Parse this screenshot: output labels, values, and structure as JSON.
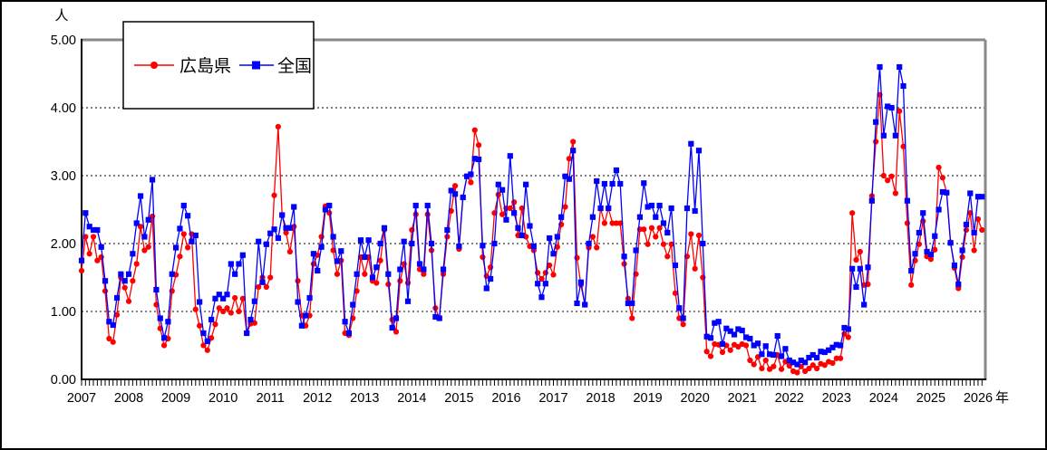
{
  "chart_data": {
    "type": "line",
    "title": "",
    "y_unit_label": "人",
    "x_unit_label": "年",
    "ylim": [
      0,
      5
    ],
    "y_ticks": [
      "0.00",
      "1.00",
      "2.00",
      "3.00",
      "4.00",
      "5.00"
    ],
    "x_years": [
      "2007",
      "2008",
      "2009",
      "2010",
      "2011",
      "2012",
      "2013",
      "2014",
      "2015",
      "2016",
      "2017",
      "2018",
      "2019",
      "2020",
      "2021",
      "2022",
      "2023",
      "2024",
      "2025",
      "2026"
    ],
    "x_start_month": "2007-01",
    "x_interval": "monthly",
    "grid": "dashed horizontal lines at 1.00-4.00",
    "legend_position": "top-left box",
    "series": [
      {
        "name": "広島県",
        "color": "#ff0000",
        "marker": "circle",
        "values": [
          1.6,
          2.1,
          1.85,
          2.1,
          1.75,
          1.8,
          1.3,
          0.6,
          0.55,
          0.95,
          1.5,
          1.35,
          1.15,
          1.45,
          1.7,
          2.25,
          1.9,
          1.95,
          2.4,
          1.1,
          0.75,
          0.5,
          0.6,
          1.3,
          1.54,
          1.81,
          2.14,
          1.94,
          2.14,
          1.03,
          0.79,
          0.5,
          0.43,
          0.61,
          0.81,
          1.05,
          1.0,
          1.05,
          0.98,
          1.2,
          1.0,
          1.19,
          0.68,
          0.82,
          0.83,
          1.36,
          1.5,
          1.36,
          1.5,
          2.71,
          3.72,
          2.42,
          2.16,
          1.88,
          2.25,
          1.45,
          0.94,
          0.79,
          0.94,
          1.7,
          1.83,
          2.1,
          2.55,
          2.45,
          1.9,
          1.55,
          1.75,
          0.68,
          0.65,
          0.9,
          1.3,
          1.8,
          1.55,
          1.8,
          1.45,
          1.42,
          1.75,
          2.2,
          1.4,
          0.88,
          0.7,
          1.45,
          1.7,
          1.42,
          2.2,
          2.43,
          1.62,
          1.55,
          2.43,
          1.9,
          1.05,
          0.9,
          1.55,
          2.1,
          2.48,
          2.85,
          1.92,
          2.68,
          2.99,
          2.9,
          3.67,
          3.45,
          1.8,
          1.52,
          1.65,
          2.45,
          2.72,
          2.43,
          2.52,
          2.52,
          2.61,
          2.12,
          2.52,
          2.1,
          1.96,
          1.9,
          1.57,
          1.48,
          1.57,
          1.68,
          1.54,
          1.95,
          2.28,
          2.54,
          3.25,
          3.5,
          1.79,
          1.39,
          1.1,
          1.94,
          2.1,
          1.94,
          2.52,
          2.3,
          2.52,
          2.3,
          2.3,
          2.3,
          1.7,
          1.19,
          0.9,
          1.55,
          2.21,
          2.21,
          1.99,
          2.23,
          2.1,
          2.23,
          1.99,
          1.81,
          1.99,
          1.27,
          0.9,
          0.81,
          1.81,
          2.14,
          1.63,
          2.12,
          1.5,
          0.41,
          0.34,
          0.52,
          0.51,
          0.4,
          0.5,
          0.43,
          0.51,
          0.48,
          0.52,
          0.5,
          0.28,
          0.22,
          0.33,
          0.16,
          0.28,
          0.15,
          0.19,
          0.36,
          0.15,
          0.26,
          0.2,
          0.12,
          0.1,
          0.19,
          0.12,
          0.16,
          0.21,
          0.16,
          0.23,
          0.21,
          0.26,
          0.24,
          0.31,
          0.31,
          0.67,
          0.62,
          2.45,
          1.76,
          1.88,
          1.39,
          1.4,
          2.7,
          3.5,
          4.19,
          3.0,
          2.93,
          2.99,
          2.74,
          3.95,
          3.43,
          2.3,
          1.39,
          1.75,
          1.99,
          2.33,
          1.81,
          1.77,
          1.91,
          3.12,
          2.97,
          2.75,
          2.02,
          1.64,
          1.34,
          1.8,
          2.2,
          2.45,
          1.9,
          2.36,
          2.2
        ]
      },
      {
        "name": "全国",
        "color": "#0000ff",
        "marker": "square",
        "values": [
          1.75,
          2.45,
          2.25,
          2.2,
          2.2,
          1.95,
          1.45,
          0.85,
          0.8,
          1.2,
          1.55,
          1.45,
          1.55,
          1.85,
          2.3,
          2.7,
          2.1,
          2.35,
          2.94,
          1.32,
          0.9,
          0.61,
          0.85,
          1.55,
          1.94,
          2.22,
          2.56,
          2.41,
          2.03,
          2.12,
          1.14,
          0.68,
          0.56,
          0.88,
          1.19,
          1.25,
          1.19,
          1.25,
          1.7,
          1.55,
          1.7,
          1.83,
          0.68,
          0.88,
          1.15,
          2.03,
          1.43,
          1.99,
          2.15,
          2.21,
          2.08,
          2.42,
          2.23,
          2.23,
          2.54,
          1.14,
          0.79,
          0.94,
          1.2,
          1.85,
          1.6,
          1.95,
          2.5,
          2.56,
          2.1,
          1.74,
          1.89,
          0.85,
          0.68,
          1.1,
          1.55,
          2.05,
          1.8,
          2.05,
          1.5,
          1.65,
          2.0,
          2.23,
          1.55,
          0.76,
          0.9,
          1.62,
          2.03,
          1.15,
          2.0,
          2.56,
          1.7,
          1.62,
          2.56,
          2.0,
          0.92,
          0.9,
          1.62,
          2.2,
          2.78,
          2.73,
          1.96,
          2.68,
          2.99,
          3.02,
          3.25,
          3.24,
          1.97,
          1.34,
          1.48,
          2.0,
          2.87,
          2.79,
          2.35,
          3.29,
          2.45,
          2.23,
          2.12,
          2.87,
          2.26,
          1.96,
          1.41,
          1.21,
          1.41,
          2.08,
          1.85,
          2.1,
          2.39,
          2.99,
          2.95,
          3.37,
          1.12,
          1.43,
          1.1,
          2.0,
          2.39,
          2.92,
          2.52,
          2.88,
          2.52,
          2.88,
          3.08,
          2.88,
          1.81,
          1.12,
          1.12,
          1.9,
          2.39,
          2.89,
          2.54,
          2.56,
          2.39,
          2.56,
          2.3,
          2.16,
          2.52,
          1.68,
          1.05,
          0.9,
          2.52,
          3.47,
          2.48,
          3.37,
          2.0,
          0.63,
          0.61,
          0.83,
          0.85,
          0.52,
          0.75,
          0.71,
          0.66,
          0.74,
          0.72,
          0.62,
          0.6,
          0.5,
          0.53,
          0.37,
          0.49,
          0.37,
          0.36,
          0.64,
          0.34,
          0.45,
          0.28,
          0.25,
          0.22,
          0.28,
          0.25,
          0.32,
          0.36,
          0.32,
          0.41,
          0.4,
          0.43,
          0.47,
          0.51,
          0.5,
          0.76,
          0.74,
          1.63,
          1.36,
          1.63,
          1.1,
          1.65,
          2.63,
          3.79,
          4.6,
          3.59,
          4.02,
          4.0,
          3.59,
          4.6,
          4.32,
          2.63,
          1.6,
          1.85,
          2.16,
          2.45,
          1.88,
          1.84,
          2.11,
          2.5,
          2.76,
          2.75,
          2.01,
          1.68,
          1.4,
          1.9,
          2.28,
          2.74,
          2.16,
          2.69,
          2.69
        ]
      }
    ]
  }
}
